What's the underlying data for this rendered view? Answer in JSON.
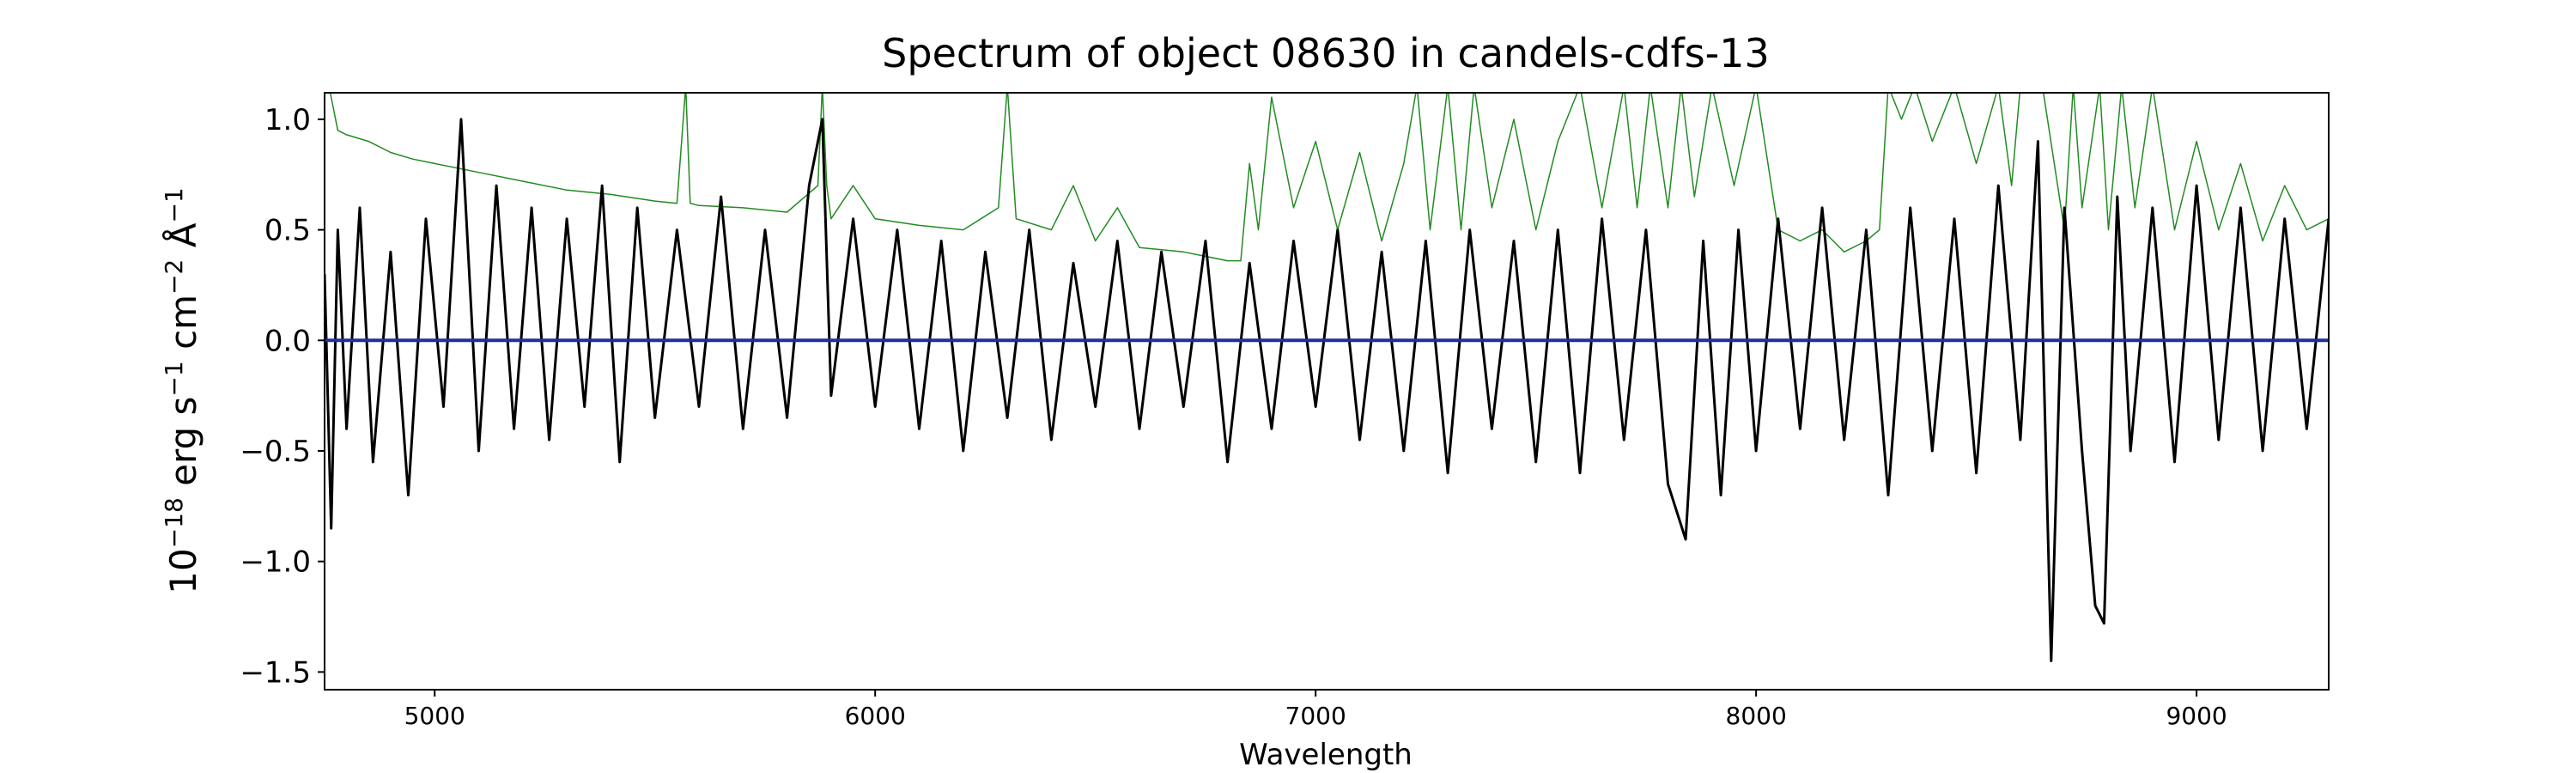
{
  "figure": {
    "title": "Spectrum of object 08630 in candels-cdfs-13"
  },
  "chart_data": {
    "type": "line",
    "title": "Spectrum of object 08630 in candels-cdfs-13",
    "xlabel": "Wavelength",
    "ylabel_parts": {
      "base": "10",
      "exp": "−18",
      "t1": " erg s",
      "e1": "−1",
      "t2": " cm",
      "e2": "−2",
      "t3": " Å",
      "e3": "−1"
    },
    "xlim": [
      4750,
      9300
    ],
    "ylim": [
      -1.58,
      1.12
    ],
    "xticks": [
      5000,
      6000,
      7000,
      8000,
      9000
    ],
    "xtick_labels": [
      "5000",
      "6000",
      "7000",
      "8000",
      "9000"
    ],
    "yticks": [
      -1.5,
      -1.0,
      -0.5,
      0.0,
      0.5,
      1.0
    ],
    "ytick_labels": [
      "−1.5",
      "−1.0",
      "−0.5",
      "0.0",
      "0.5",
      "1.0"
    ],
    "grid": false,
    "series": [
      {
        "role": "flux",
        "color": "#000000",
        "width": 3,
        "x": [
          4750,
          4765,
          4780,
          4800,
          4830,
          4860,
          4900,
          4940,
          4980,
          5020,
          5060,
          5100,
          5140,
          5180,
          5220,
          5260,
          5300,
          5340,
          5380,
          5420,
          5460,
          5500,
          5550,
          5600,
          5650,
          5700,
          5750,
          5800,
          5850,
          5880,
          5900,
          5950,
          6000,
          6050,
          6100,
          6150,
          6200,
          6250,
          6300,
          6350,
          6400,
          6450,
          6500,
          6550,
          6600,
          6650,
          6700,
          6750,
          6800,
          6850,
          6900,
          6950,
          7000,
          7050,
          7100,
          7150,
          7200,
          7250,
          7300,
          7350,
          7400,
          7450,
          7500,
          7550,
          7600,
          7650,
          7700,
          7750,
          7800,
          7840,
          7880,
          7920,
          7960,
          8000,
          8050,
          8100,
          8150,
          8200,
          8250,
          8300,
          8350,
          8400,
          8450,
          8500,
          8550,
          8600,
          8640,
          8670,
          8700,
          8740,
          8770,
          8790,
          8820,
          8850,
          8900,
          8950,
          9000,
          9050,
          9100,
          9150,
          9200,
          9250,
          9300
        ],
        "y": [
          0.3,
          -0.85,
          0.5,
          -0.4,
          0.6,
          -0.55,
          0.4,
          -0.7,
          0.55,
          -0.3,
          1.0,
          -0.5,
          0.7,
          -0.4,
          0.6,
          -0.45,
          0.55,
          -0.3,
          0.7,
          -0.55,
          0.6,
          -0.35,
          0.5,
          -0.3,
          0.65,
          -0.4,
          0.5,
          -0.35,
          0.7,
          1.0,
          -0.25,
          0.55,
          -0.3,
          0.5,
          -0.4,
          0.45,
          -0.5,
          0.4,
          -0.35,
          0.5,
          -0.45,
          0.35,
          -0.3,
          0.45,
          -0.4,
          0.4,
          -0.3,
          0.45,
          -0.55,
          0.35,
          -0.4,
          0.45,
          -0.3,
          0.5,
          -0.45,
          0.4,
          -0.5,
          0.45,
          -0.6,
          0.5,
          -0.4,
          0.45,
          -0.55,
          0.5,
          -0.6,
          0.55,
          -0.45,
          0.5,
          -0.65,
          -0.9,
          0.45,
          -0.7,
          0.5,
          -0.5,
          0.55,
          -0.4,
          0.6,
          -0.45,
          0.5,
          -0.7,
          0.6,
          -0.5,
          0.55,
          -0.6,
          0.7,
          -0.45,
          0.9,
          -1.45,
          0.6,
          -0.5,
          -1.2,
          -1.28,
          0.65,
          -0.5,
          0.6,
          -0.55,
          0.7,
          -0.45,
          0.6,
          -0.5,
          0.55,
          -0.4,
          0.55
        ]
      },
      {
        "role": "error",
        "color": "#228B22",
        "width": 1.5,
        "x": [
          4750,
          4760,
          4780,
          4800,
          4850,
          4900,
          4950,
          5000,
          5100,
          5200,
          5300,
          5400,
          5500,
          5550,
          5570,
          5580,
          5600,
          5700,
          5800,
          5870,
          5880,
          5890,
          5900,
          5950,
          6000,
          6100,
          6200,
          6280,
          6300,
          6320,
          6400,
          6450,
          6500,
          6550,
          6600,
          6700,
          6800,
          6830,
          6850,
          6870,
          6900,
          6950,
          7000,
          7050,
          7100,
          7150,
          7200,
          7230,
          7260,
          7300,
          7330,
          7360,
          7400,
          7450,
          7500,
          7550,
          7600,
          7650,
          7700,
          7730,
          7760,
          7800,
          7830,
          7860,
          7900,
          7950,
          8000,
          8050,
          8100,
          8150,
          8200,
          8250,
          8280,
          8300,
          8330,
          8360,
          8400,
          8450,
          8500,
          8550,
          8580,
          8600,
          8650,
          8700,
          8720,
          8740,
          8780,
          8800,
          8830,
          8860,
          8900,
          8950,
          9000,
          9050,
          9100,
          9150,
          9200,
          9250,
          9300
        ],
        "y": [
          1.15,
          1.15,
          0.95,
          0.93,
          0.9,
          0.85,
          0.82,
          0.8,
          0.76,
          0.72,
          0.68,
          0.66,
          0.63,
          0.62,
          1.15,
          0.62,
          0.61,
          0.6,
          0.58,
          0.7,
          1.15,
          0.7,
          0.55,
          0.7,
          0.55,
          0.52,
          0.5,
          0.6,
          1.15,
          0.55,
          0.5,
          0.7,
          0.45,
          0.6,
          0.42,
          0.4,
          0.36,
          0.36,
          0.8,
          0.5,
          1.1,
          0.6,
          0.9,
          0.5,
          0.85,
          0.45,
          0.8,
          1.15,
          0.5,
          1.15,
          0.5,
          1.15,
          0.6,
          1.0,
          0.5,
          0.9,
          1.15,
          0.6,
          1.15,
          0.6,
          1.15,
          0.6,
          1.15,
          0.65,
          1.15,
          0.7,
          1.15,
          0.5,
          0.45,
          0.5,
          0.4,
          0.45,
          0.5,
          1.15,
          1.0,
          1.15,
          0.9,
          1.15,
          0.8,
          1.15,
          0.7,
          1.15,
          1.15,
          0.5,
          1.15,
          0.6,
          1.15,
          0.5,
          1.15,
          0.6,
          1.15,
          0.5,
          0.9,
          0.5,
          0.8,
          0.45,
          0.7,
          0.5,
          0.55
        ]
      },
      {
        "role": "zero-line",
        "color": "#1f2fa0",
        "width": 4,
        "x": [
          4750,
          9300
        ],
        "y": [
          0.0,
          0.0
        ]
      }
    ]
  }
}
